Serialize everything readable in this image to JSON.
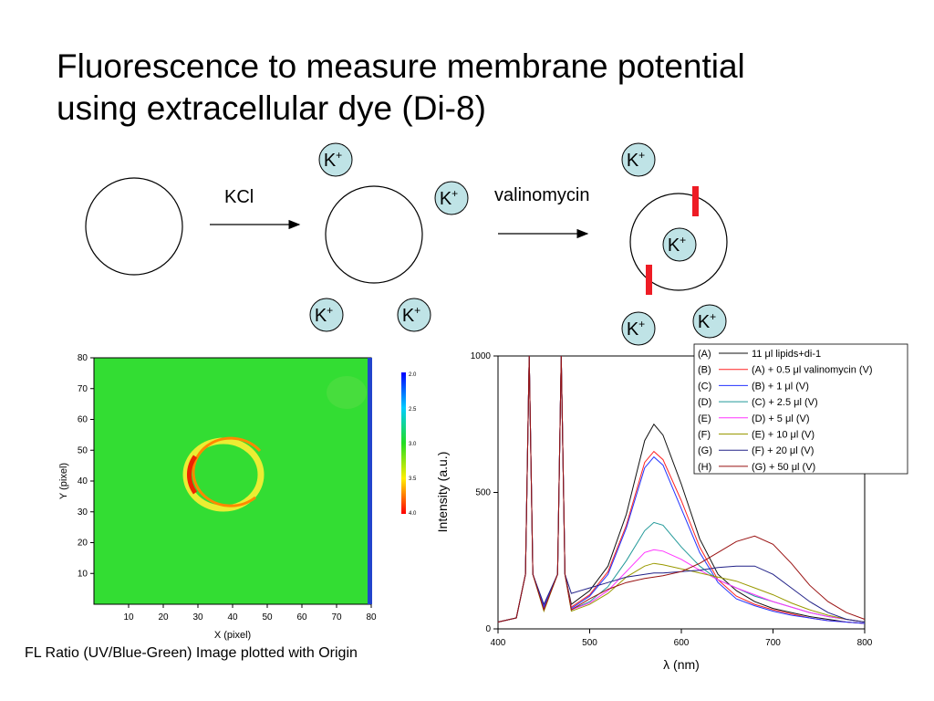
{
  "slide": {
    "title_line1": "Fluorescence to measure membrane potential",
    "title_line2": "using extracellular dye (Di-8)",
    "caption": "FL Ratio (UV/Blue-Green) Image plotted with Origin"
  },
  "diagram": {
    "label_kcl": "KCl",
    "label_valinomycin": "valinomycin",
    "ion_label": "K",
    "ion_charge": "+",
    "ion_fill": "#bfe3e6",
    "channel_color": "#ee1c25"
  },
  "image_plot": {
    "xlabel": "X (pixel)",
    "ylabel": "Y (pixel)",
    "x_ticks": [
      "10",
      "20",
      "30",
      "40",
      "50",
      "60",
      "70",
      "80"
    ],
    "y_ticks": [
      "10",
      "20",
      "30",
      "40",
      "50",
      "60",
      "70",
      "80"
    ],
    "colorbar_ticks": [
      "2.0",
      "2.5",
      "3.0",
      "3.5",
      "4.0"
    ],
    "background_color": "#33dd33"
  },
  "chart_data": {
    "type": "line",
    "xlabel": "λ (nm)",
    "ylabel": "Intensity (a.u.)",
    "xlim": [
      400,
      800
    ],
    "ylim": [
      0,
      1000
    ],
    "x_ticks": [
      "400",
      "500",
      "600",
      "700",
      "800"
    ],
    "y_ticks": [
      "0",
      "500",
      "1000"
    ],
    "legend_position": "top-right",
    "x": [
      400,
      420,
      430,
      434,
      438,
      450,
      465,
      469,
      473,
      480,
      500,
      520,
      540,
      560,
      570,
      580,
      600,
      620,
      640,
      660,
      680,
      700,
      720,
      740,
      760,
      780,
      800
    ],
    "series": [
      {
        "letter": "(A)",
        "name": "11 μl lipids+di-1",
        "color": "#111111",
        "values": [
          25,
          40,
          200,
          1000,
          200,
          80,
          200,
          1000,
          200,
          90,
          140,
          230,
          420,
          690,
          750,
          710,
          530,
          330,
          200,
          140,
          100,
          75,
          60,
          45,
          35,
          25,
          20
        ]
      },
      {
        "letter": "(B)",
        "name": "(A) + 0.5 μl valinomycin (V)",
        "color": "#ff2222",
        "values": [
          25,
          40,
          200,
          1000,
          200,
          80,
          200,
          1000,
          200,
          80,
          125,
          210,
          380,
          610,
          650,
          620,
          470,
          300,
          180,
          120,
          90,
          70,
          55,
          40,
          30,
          25,
          20
        ]
      },
      {
        "letter": "(C)",
        "name": "(B) + 1 μl (V)",
        "color": "#2233ff",
        "values": [
          25,
          40,
          200,
          1000,
          200,
          80,
          200,
          1000,
          200,
          75,
          120,
          200,
          370,
          590,
          630,
          600,
          440,
          280,
          170,
          110,
          85,
          65,
          50,
          40,
          30,
          25,
          20
        ]
      },
      {
        "letter": "(D)",
        "name": "(C) + 2.5 μl (V)",
        "color": "#229999",
        "values": [
          25,
          40,
          200,
          1000,
          200,
          70,
          200,
          1000,
          200,
          70,
          100,
          155,
          250,
          360,
          390,
          380,
          300,
          230,
          180,
          150,
          120,
          100,
          80,
          60,
          45,
          35,
          25
        ]
      },
      {
        "letter": "(E)",
        "name": "(D) + 5 μl (V)",
        "color": "#ff33ff",
        "values": [
          25,
          40,
          200,
          1000,
          200,
          70,
          200,
          1000,
          200,
          70,
          95,
          140,
          210,
          280,
          290,
          285,
          255,
          215,
          180,
          150,
          125,
          100,
          80,
          60,
          45,
          35,
          25
        ]
      },
      {
        "letter": "(F)",
        "name": "(E) + 10 μl (V)",
        "color": "#999900",
        "values": [
          25,
          40,
          200,
          1000,
          200,
          65,
          200,
          1000,
          200,
          65,
          90,
          130,
          190,
          230,
          240,
          235,
          220,
          205,
          190,
          175,
          150,
          125,
          95,
          70,
          50,
          35,
          25
        ]
      },
      {
        "letter": "(G)",
        "name": "(F) + 20 μl (V)",
        "color": "#222288",
        "values": [
          25,
          40,
          200,
          1000,
          200,
          90,
          200,
          1000,
          200,
          130,
          150,
          170,
          190,
          200,
          205,
          205,
          210,
          215,
          225,
          230,
          230,
          200,
          150,
          100,
          60,
          35,
          25
        ]
      },
      {
        "letter": "(H)",
        "name": "(G) + 50 μl (V)",
        "color": "#991111",
        "values": [
          25,
          40,
          200,
          1000,
          200,
          70,
          200,
          1000,
          200,
          70,
          110,
          145,
          170,
          185,
          190,
          195,
          210,
          240,
          280,
          320,
          340,
          310,
          240,
          160,
          100,
          60,
          35
        ]
      }
    ]
  }
}
